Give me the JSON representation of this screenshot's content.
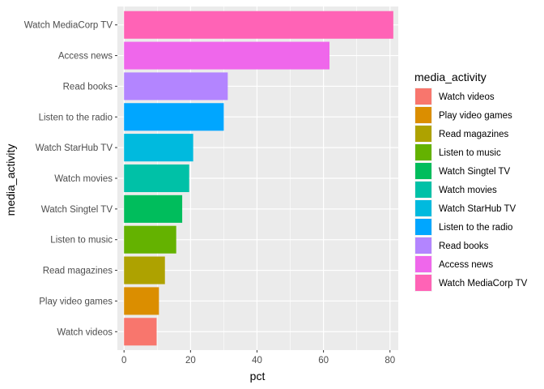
{
  "chart_data": {
    "type": "bar",
    "orientation": "horizontal",
    "categories": [
      "Watch videos",
      "Play video games",
      "Read magazines",
      "Listen to music",
      "Watch Singtel TV",
      "Watch movies",
      "Watch StarHub TV",
      "Listen to the radio",
      "Read books",
      "Access news",
      "Watch MediaCorp TV"
    ],
    "values": [
      9.8,
      10.5,
      12.3,
      15.7,
      17.5,
      19.6,
      20.8,
      30.0,
      31.2,
      61.8,
      81.0
    ],
    "colors": [
      "#F8766D",
      "#DB8E00",
      "#AEA200",
      "#64B200",
      "#00BD5C",
      "#00C1A7",
      "#00BADE",
      "#00A6FF",
      "#B385FF",
      "#EF67EB",
      "#FF63B6"
    ],
    "xlabel": "pct",
    "ylabel": "media_activity",
    "xlim": [
      -2,
      82.5
    ],
    "xticks": [
      0,
      20,
      40,
      60,
      80
    ],
    "xtick_labels": [
      "0",
      "20",
      "40",
      "60",
      "80"
    ],
    "grid": true,
    "legend": {
      "title": "media_activity",
      "placement": "right",
      "entries": [
        "Watch videos",
        "Play video games",
        "Read magazines",
        "Listen to music",
        "Watch Singtel TV",
        "Watch movies",
        "Watch StarHub TV",
        "Listen to the radio",
        "Read books",
        "Access news",
        "Watch MediaCorp TV"
      ]
    },
    "panel_background": "#EBEBEB",
    "gridline_color": "#FFFFFF"
  }
}
